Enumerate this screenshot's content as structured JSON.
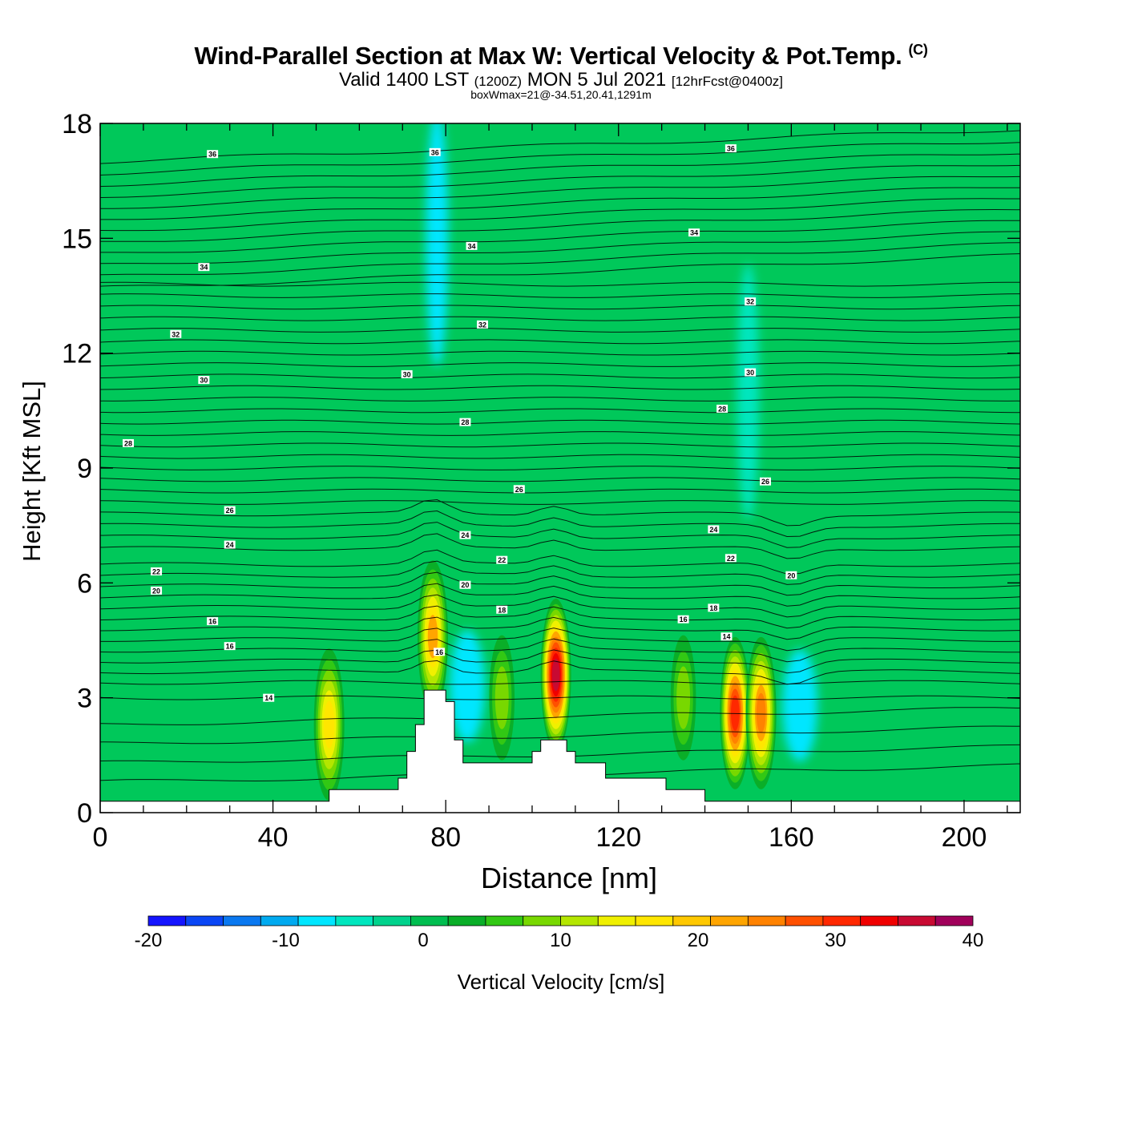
{
  "title": {
    "main": "Wind-Parallel Section at Max W: Vertical Velocity & Pot.Temp.",
    "copyright": "(C)",
    "valid_prefix": "Valid 1400 LST",
    "valid_z": "(1200Z)",
    "valid_date": "MON 5 Jul 2021",
    "forecast": "[12hrFcst@0400z]",
    "box": "boxWmax=21@-34.51,20.41,1291m"
  },
  "chart_data": {
    "type": "heatmap",
    "xlabel": "Distance [nm]",
    "ylabel": "Height [Kft MSL]",
    "xlim": [
      0,
      213
    ],
    "ylim": [
      0,
      18
    ],
    "x_ticks": [
      "0",
      "40",
      "80",
      "120",
      "160",
      "200"
    ],
    "y_ticks": [
      "0",
      "3",
      "6",
      "9",
      "12",
      "15",
      "18"
    ],
    "colorbar": {
      "label": "Vertical Velocity [cm/s]",
      "range": [
        -20,
        40
      ],
      "tick_labels": [
        "-20",
        "-10",
        "0",
        "10",
        "20",
        "30",
        "40"
      ],
      "colors": [
        "#1414ff",
        "#0a46f5",
        "#0a78f0",
        "#00aaf0",
        "#00e6ff",
        "#00e6be",
        "#00d28c",
        "#00be50",
        "#0aae28",
        "#32c814",
        "#78d800",
        "#b4e600",
        "#f0f000",
        "#ffe600",
        "#ffc800",
        "#ffa500",
        "#ff8200",
        "#ff5000",
        "#ff2800",
        "#f00000",
        "#c80a32",
        "#a0005a"
      ]
    },
    "updraft_maxima": [
      {
        "x": 53,
        "z": 2.3,
        "w": 20
      },
      {
        "x": 77,
        "z": 4.6,
        "w": 22
      },
      {
        "x": 105.5,
        "z": 3.6,
        "w": 36
      },
      {
        "x": 147,
        "z": 2.6,
        "w": 30
      },
      {
        "x": 153,
        "z": 2.6,
        "w": 24
      },
      {
        "x": 93,
        "z": 3.0,
        "w": 9
      },
      {
        "x": 135,
        "z": 3.0,
        "w": 9
      }
    ],
    "downdraft_minima": [
      {
        "x": 85,
        "z": 3.3,
        "w": -7
      },
      {
        "x": 162,
        "z": 2.8,
        "w": -7
      },
      {
        "x": 78,
        "z": 15.0,
        "w": -8
      },
      {
        "x": 150,
        "z": 11.0,
        "w": -5
      }
    ],
    "terrain_height": {
      "x": [
        0,
        51,
        53,
        67,
        69,
        71,
        73,
        75,
        79,
        80,
        82,
        84,
        98,
        100,
        102,
        108,
        110,
        117,
        131,
        140,
        213
      ],
      "z": [
        0.3,
        0.3,
        0.6,
        0.6,
        0.9,
        1.6,
        2.3,
        3.2,
        3.2,
        2.9,
        1.9,
        1.3,
        1.3,
        1.6,
        1.9,
        1.6,
        1.3,
        0.9,
        0.6,
        0.3,
        0.3
      ]
    },
    "pot_temp_labels": [
      {
        "text": "36",
        "x": 26,
        "z": 17.2
      },
      {
        "text": "36",
        "x": 77.5,
        "z": 17.25
      },
      {
        "text": "36",
        "x": 146,
        "z": 17.35
      },
      {
        "text": "34",
        "x": 137.5,
        "z": 15.15
      },
      {
        "text": "34",
        "x": 86,
        "z": 14.8
      },
      {
        "text": "34",
        "x": 24,
        "z": 14.25
      },
      {
        "text": "32",
        "x": 150.5,
        "z": 13.35
      },
      {
        "text": "32",
        "x": 88.5,
        "z": 12.75
      },
      {
        "text": "32",
        "x": 17.5,
        "z": 12.5
      },
      {
        "text": "30",
        "x": 150.5,
        "z": 11.5
      },
      {
        "text": "30",
        "x": 71,
        "z": 11.45
      },
      {
        "text": "30",
        "x": 24,
        "z": 11.3
      },
      {
        "text": "28",
        "x": 144,
        "z": 10.55
      },
      {
        "text": "28",
        "x": 84.5,
        "z": 10.2
      },
      {
        "text": "28",
        "x": 6.5,
        "z": 9.65
      },
      {
        "text": "26",
        "x": 154,
        "z": 8.65
      },
      {
        "text": "26",
        "x": 97,
        "z": 8.45
      },
      {
        "text": "26",
        "x": 30,
        "z": 7.9
      },
      {
        "text": "24",
        "x": 142,
        "z": 7.4
      },
      {
        "text": "24",
        "x": 84.5,
        "z": 7.25
      },
      {
        "text": "24",
        "x": 30,
        "z": 7.0
      },
      {
        "text": "22",
        "x": 146,
        "z": 6.65
      },
      {
        "text": "22",
        "x": 93,
        "z": 6.6
      },
      {
        "text": "22",
        "x": 13,
        "z": 6.3
      },
      {
        "text": "20",
        "x": 160,
        "z": 6.2
      },
      {
        "text": "20",
        "x": 84.5,
        "z": 5.95
      },
      {
        "text": "20",
        "x": 13,
        "z": 5.8
      },
      {
        "text": "18",
        "x": 142,
        "z": 5.35
      },
      {
        "text": "18",
        "x": 93,
        "z": 5.3
      },
      {
        "text": "16",
        "x": 135,
        "z": 5.05
      },
      {
        "text": "16",
        "x": 26,
        "z": 5.0
      },
      {
        "text": "16",
        "x": 30,
        "z": 4.35
      },
      {
        "text": "14",
        "x": 145,
        "z": 4.6
      },
      {
        "text": "16",
        "x": 78.5,
        "z": 4.2
      },
      {
        "text": "14",
        "x": 39,
        "z": 3.0
      }
    ]
  }
}
